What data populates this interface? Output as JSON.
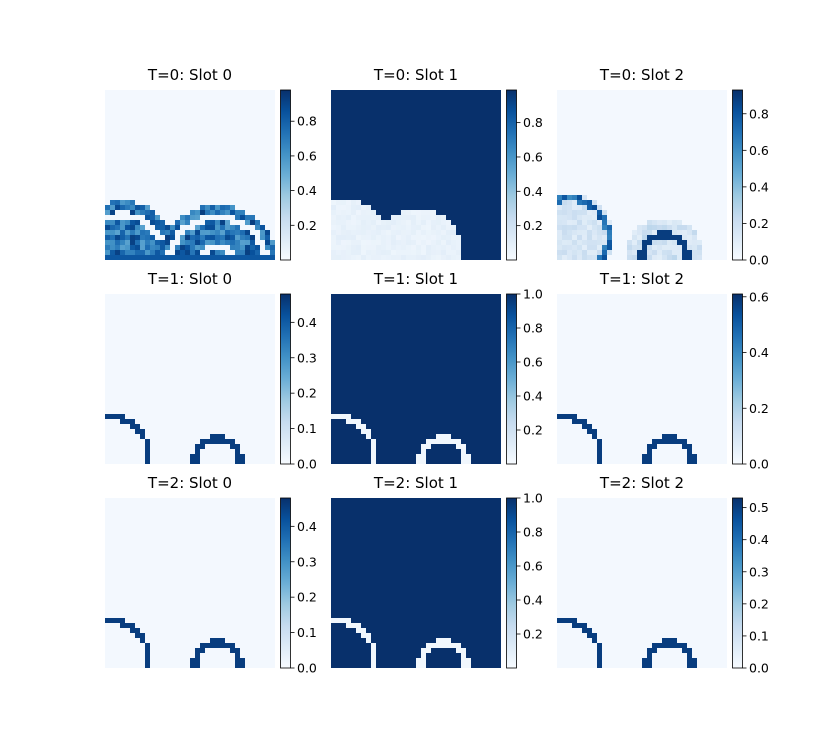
{
  "chart_data": [
    {
      "type": "heatmap",
      "title": "T=0: Slot 0",
      "colormap": "Blues",
      "colorbar_ticks": [
        "0.2",
        "0.4",
        "0.6",
        "0.8"
      ],
      "vmin": 0.0,
      "vmax": 1.0,
      "description_pattern": "two noisy multi-ring circles at bottom",
      "ticks_values": [
        0.2,
        0.4,
        0.6,
        0.8
      ],
      "cbar_range": [
        0.0,
        0.98
      ]
    },
    {
      "type": "heatmap",
      "title": "T=0: Slot 1",
      "colormap": "Blues",
      "colorbar_ticks": [
        "0.2",
        "0.4",
        "0.6",
        "0.8"
      ],
      "ticks_values": [
        0.2,
        0.4,
        0.6,
        0.8
      ],
      "cbar_range": [
        0.0,
        0.99
      ]
    },
    {
      "type": "heatmap",
      "title": "T=0: Slot 2",
      "colormap": "Blues",
      "colorbar_ticks": [
        "0.0",
        "0.2",
        "0.4",
        "0.6",
        "0.8"
      ],
      "ticks_values": [
        0.0,
        0.2,
        0.4,
        0.6,
        0.8
      ],
      "cbar_range": [
        0.0,
        0.93
      ]
    },
    {
      "type": "heatmap",
      "title": "T=1: Slot 0",
      "colormap": "Blues",
      "colorbar_ticks": [
        "0.0",
        "0.1",
        "0.2",
        "0.3",
        "0.4"
      ],
      "ticks_values": [
        0.0,
        0.1,
        0.2,
        0.3,
        0.4
      ],
      "cbar_range": [
        0.0,
        0.48
      ]
    },
    {
      "type": "heatmap",
      "title": "T=1: Slot 1",
      "colormap": "Blues",
      "colorbar_ticks": [
        "0.2",
        "0.4",
        "0.6",
        "0.8",
        "1.0"
      ],
      "ticks_values": [
        0.2,
        0.4,
        0.6,
        0.8,
        1.0
      ],
      "cbar_range": [
        0.0,
        1.0
      ]
    },
    {
      "type": "heatmap",
      "title": "T=1: Slot 2",
      "colormap": "Blues",
      "colorbar_ticks": [
        "0.0",
        "0.2",
        "0.4",
        "0.6"
      ],
      "ticks_values": [
        0.0,
        0.2,
        0.4,
        0.6
      ],
      "cbar_range": [
        0.0,
        0.61
      ]
    },
    {
      "type": "heatmap",
      "title": "T=2: Slot 0",
      "colormap": "Blues",
      "colorbar_ticks": [
        "0.0",
        "0.1",
        "0.2",
        "0.3",
        "0.4"
      ],
      "ticks_values": [
        0.0,
        0.1,
        0.2,
        0.3,
        0.4
      ],
      "cbar_range": [
        0.0,
        0.48
      ]
    },
    {
      "type": "heatmap",
      "title": "T=2: Slot 1",
      "colormap": "Blues",
      "colorbar_ticks": [
        "0.2",
        "0.4",
        "0.6",
        "0.8",
        "1.0"
      ],
      "ticks_values": [
        0.2,
        0.4,
        0.6,
        0.8,
        1.0
      ],
      "cbar_range": [
        0.0,
        1.0
      ]
    },
    {
      "type": "heatmap",
      "title": "T=2: Slot 2",
      "colormap": "Blues",
      "colorbar_ticks": [
        "0.0",
        "0.1",
        "0.2",
        "0.3",
        "0.4",
        "0.5"
      ],
      "ticks_values": [
        0.0,
        0.1,
        0.2,
        0.3,
        0.4,
        0.5
      ],
      "cbar_range": [
        0.0,
        0.53
      ]
    }
  ]
}
